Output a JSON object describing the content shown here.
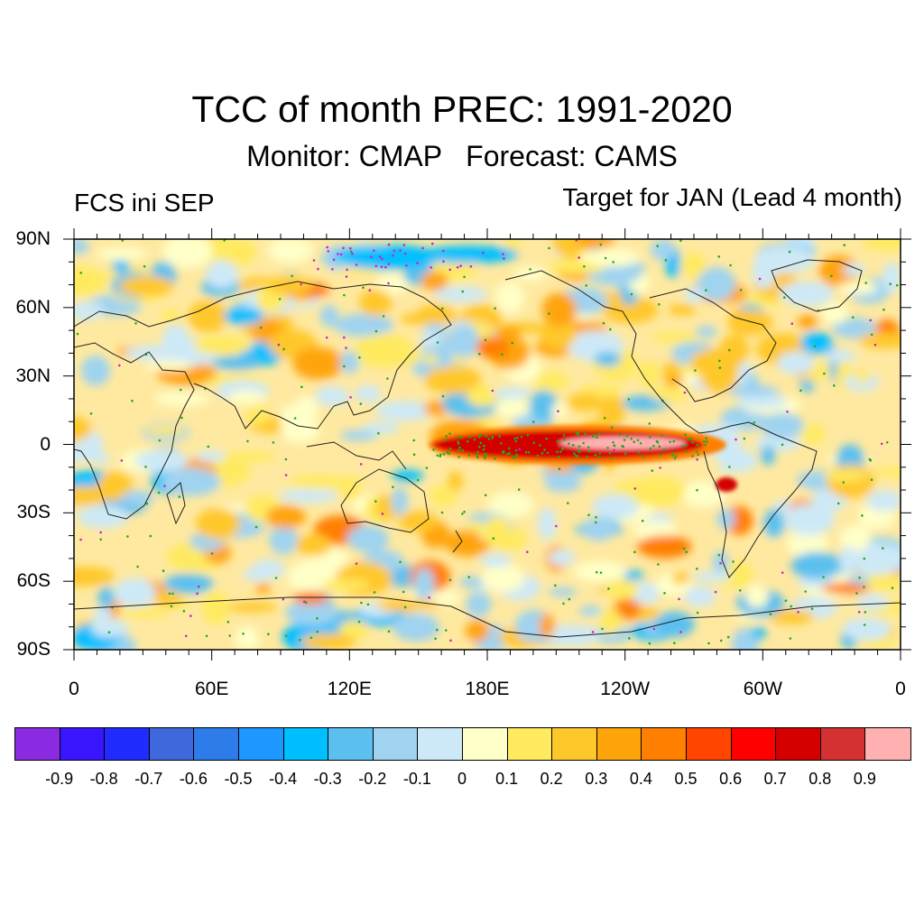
{
  "title": "TCC of month PREC: 1991-2020",
  "subtitle": "Monitor: CMAP   Forecast: CAMS",
  "left_label": "FCS ini SEP",
  "right_label": "Target for JAN (Lead 4 month)",
  "lat_labels": [
    "90N",
    "60N",
    "30N",
    "0",
    "30S",
    "60S",
    "90S"
  ],
  "lon_labels": [
    "0",
    "60E",
    "120E",
    "180E",
    "120W",
    "60W",
    "0"
  ],
  "colorbar": {
    "colors": [
      "#8a2be2",
      "#3a16ff",
      "#1f2bff",
      "#3f68dd",
      "#2e7bea",
      "#1e98ff",
      "#00bfff",
      "#5bc0ef",
      "#9fd3f0",
      "#cde9f7",
      "#ffffc8",
      "#ffea60",
      "#ffc82a",
      "#ffa40a",
      "#ff7f00",
      "#ff4500",
      "#ff0000",
      "#d40000",
      "#d43232",
      "#ffb0b0"
    ],
    "labels": [
      "-0.9",
      "-0.8",
      "-0.7",
      "-0.6",
      "-0.5",
      "-0.4",
      "-0.3",
      "-0.2",
      "-0.1",
      "0",
      "0.1",
      "0.2",
      "0.3",
      "0.4",
      "0.5",
      "0.6",
      "0.7",
      "0.8",
      "0.9"
    ]
  },
  "map": {
    "lat_range": [
      -90,
      90
    ],
    "lon_range": [
      0,
      360
    ],
    "features": [
      {
        "kind": "high-tcc-band",
        "region": "equatorial central-east Pacific",
        "lat": [
          -8,
          8
        ],
        "lon": [
          170,
          285
        ],
        "level": 0.8
      },
      {
        "kind": "peak-tcc-core",
        "region": "equatorial east Pacific",
        "lat": [
          -3,
          3
        ],
        "lon": [
          210,
          260
        ],
        "level": 0.9
      },
      {
        "kind": "negative-tcc",
        "region": "Arctic north of Siberia",
        "lat": [
          78,
          90
        ],
        "lon": [
          90,
          210
        ],
        "level": -0.5
      }
    ]
  }
}
